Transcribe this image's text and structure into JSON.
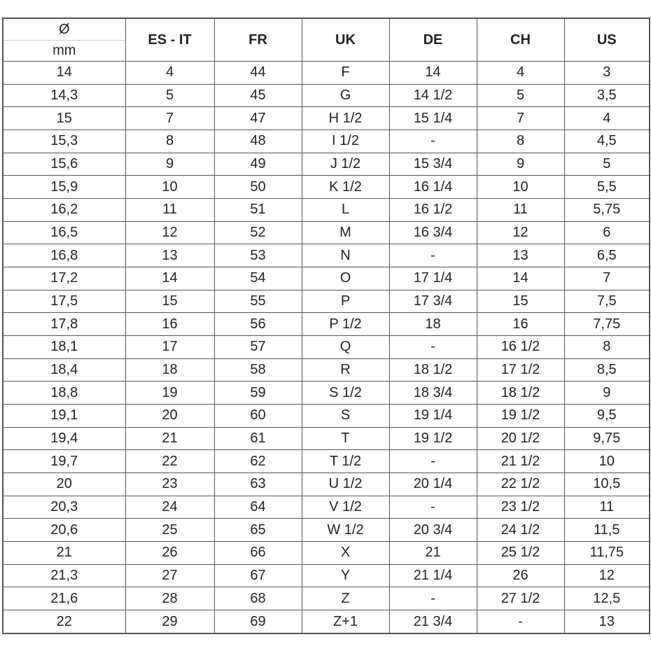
{
  "table": {
    "corner": {
      "top": "Ø",
      "bottom": "mm"
    },
    "header": [
      "ES - IT",
      "FR",
      "UK",
      "DE",
      "CH",
      "US"
    ],
    "rows": [
      [
        "14",
        "4",
        "44",
        "F",
        "14",
        "4",
        "3"
      ],
      [
        "14,3",
        "5",
        "45",
        "G",
        "14 1/2",
        "5",
        "3,5"
      ],
      [
        "15",
        "7",
        "47",
        "H 1/2",
        "15 1/4",
        "7",
        "4"
      ],
      [
        "15,3",
        "8",
        "48",
        "I 1/2",
        "-",
        "8",
        "4,5"
      ],
      [
        "15,6",
        "9",
        "49",
        "J 1/2",
        "15 3/4",
        "9",
        "5"
      ],
      [
        "15,9",
        "10",
        "50",
        "K 1/2",
        "16 1/4",
        "10",
        "5,5"
      ],
      [
        "16,2",
        "11",
        "51",
        "L",
        "16 1/2",
        "11",
        "5,75"
      ],
      [
        "16,5",
        "12",
        "52",
        "M",
        "16 3/4",
        "12",
        "6"
      ],
      [
        "16,8",
        "13",
        "53",
        "N",
        "-",
        "13",
        "6,5"
      ],
      [
        "17,2",
        "14",
        "54",
        "O",
        "17 1/4",
        "14",
        "7"
      ],
      [
        "17,5",
        "15",
        "55",
        "P",
        "17 3/4",
        "15",
        "7,5"
      ],
      [
        "17,8",
        "16",
        "56",
        "P 1/2",
        "18",
        "16",
        "7,75"
      ],
      [
        "18,1",
        "17",
        "57",
        "Q",
        "-",
        "16 1/2",
        "8"
      ],
      [
        "18,4",
        "18",
        "58",
        "R",
        "18 1/2",
        "17 1/2",
        "8,5"
      ],
      [
        "18,8",
        "19",
        "59",
        "S 1/2",
        "18 3/4",
        "18 1/2",
        "9"
      ],
      [
        "19,1",
        "20",
        "60",
        "S",
        "19 1/4",
        "19 1/2",
        "9,5"
      ],
      [
        "19,4",
        "21",
        "61",
        "T",
        "19 1/2",
        "20 1/2",
        "9,75"
      ],
      [
        "19,7",
        "22",
        "62",
        "T 1/2",
        "-",
        "21 1/2",
        "10"
      ],
      [
        "20",
        "23",
        "63",
        "U 1/2",
        "20 1/4",
        "22 1/2",
        "10,5"
      ],
      [
        "20,3",
        "24",
        "64",
        "V 1/2",
        "-",
        "23 1/2",
        "11"
      ],
      [
        "20,6",
        "25",
        "65",
        "W 1/2",
        "20 3/4",
        "24 1/2",
        "11,5"
      ],
      [
        "21",
        "26",
        "66",
        "X",
        "21",
        "25 1/2",
        "11,75"
      ],
      [
        "21,3",
        "27",
        "67",
        "Y",
        "21 1/4",
        "26",
        "12"
      ],
      [
        "21,6",
        "28",
        "68",
        "Z",
        "-",
        "27 1/2",
        "12,5"
      ],
      [
        "22",
        "29",
        "69",
        "Z+1",
        "21 3/4",
        "-",
        "13"
      ]
    ]
  }
}
